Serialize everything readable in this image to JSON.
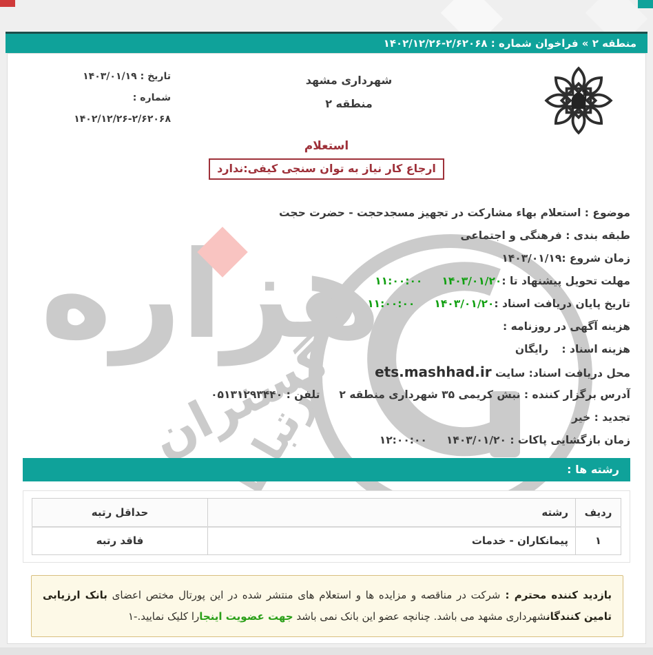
{
  "colors": {
    "teal": "#0fa29a",
    "teal_dark_edge": "#1d4d49",
    "maroon": "#9e3039",
    "green_value": "#12a012",
    "link_green": "#2ba019",
    "watermark_gray": "#cbcbcb",
    "watermark_pink": "#f9c4c1",
    "notice_bg": "#fdf9e7",
    "notice_border": "#d8bf7f",
    "corner_red": "#cf3a3a"
  },
  "header_bar": {
    "prefix": "منطقه ۲ » فراخوان شماره : ",
    "number": "۱۴۰۲/۱۲/۲۶-۲/۶۲۰۶۸"
  },
  "doc": {
    "org_title": "شهرداری مشهد",
    "org_subtitle": "منطقه ۲",
    "logo_icon": "mashhad-municipality-emblem",
    "meta": {
      "date_label": "تاریخ : ",
      "date_value": "۱۴۰۳/۰۱/۱۹",
      "number_label": "شماره :",
      "number_value": "۱۴۰۲/۱۲/۲۶-۲/۶۲۰۶۸"
    },
    "title": "استعلام",
    "qualification_box": "ارجاع کار نیاز به توان سنجی کیفی:ندارد",
    "fields": [
      {
        "segments": [
          {
            "t": "موضوع : ",
            "c": "lab"
          },
          {
            "t": "استعلام بهاء مشارکت در تجهیز مسجدحجت - حضرت حجت",
            "c": "val"
          }
        ]
      },
      {
        "segments": [
          {
            "t": "طبقه بندی : ",
            "c": "lab"
          },
          {
            "t": "فرهنگی و اجتماعی",
            "c": "val"
          }
        ]
      },
      {
        "segments": [
          {
            "t": "زمان شروع :",
            "c": "lab"
          },
          {
            "t": "۱۴۰۳/۰۱/۱۹",
            "c": "val num"
          }
        ]
      },
      {
        "segments": [
          {
            "t": "مهلت تحویل پیشنهاد تا :",
            "c": "lab"
          },
          {
            "t": "۱۴۰۳/۰۱/۲۰",
            "c": "val num green"
          },
          {
            "t": "۱۱:۰۰:۰۰",
            "c": "val num green sp"
          }
        ]
      },
      {
        "segments": [
          {
            "t": "تاریخ پایان دریافت اسناد :",
            "c": "lab"
          },
          {
            "t": "۱۴۰۳/۰۱/۲۰",
            "c": "val num green"
          },
          {
            "t": "۱۱:۰۰:۰۰",
            "c": "val num green sp"
          }
        ]
      },
      {
        "segments": [
          {
            "t": "هزینه آگهی در روزنامه :",
            "c": "lab"
          }
        ]
      },
      {
        "segments": [
          {
            "t": "هزینه اسناد : ",
            "c": "lab"
          },
          {
            "t": "رایگان",
            "c": "val sp2"
          }
        ]
      },
      {
        "segments": [
          {
            "t": "محل دریافت اسناد: سایت ",
            "c": "lab"
          },
          {
            "t": "ets.mashhad.ir",
            "c": "val url",
            "interactable": true
          }
        ]
      },
      {
        "segments": [
          {
            "t": "آدرس برگزار کننده :  ",
            "c": "lab"
          },
          {
            "t": "نبش کریمی ۳۵ شهرداری منطقه ۲",
            "c": "val"
          },
          {
            "t": "تلفن : ",
            "c": "lab sp"
          },
          {
            "t": "۰۵۱۳۱۲۹۳۴۴۰",
            "c": "val num"
          }
        ]
      },
      {
        "segments": [
          {
            "t": "تجدید : ",
            "c": "lab"
          },
          {
            "t": "خیر",
            "c": "val"
          }
        ]
      },
      {
        "segments": [
          {
            "t": "زمان بازگشایی پاکات :  ",
            "c": "lab"
          },
          {
            "t": "۱۴۰۳/۰۱/۲۰",
            "c": "val num"
          },
          {
            "t": "۱۲:۰۰:۰۰",
            "c": "val num sp"
          }
        ]
      }
    ],
    "section_bar": "رشته ها :",
    "table": {
      "headers": [
        "ردیف",
        "رشته",
        "حداقل رتبه"
      ],
      "rows": [
        [
          "۱",
          "پیمانکاران - خدمات",
          "فاقد رتبه"
        ]
      ]
    },
    "notice_segments": [
      {
        "t": "بازدید کننده محترم : ",
        "c": "b"
      },
      {
        "t": "شرکت در مناقصه و مزایده ها و استعلام های منتشر شده در این پورتال مختص اعضای ",
        "c": "n"
      },
      {
        "t": "بانک ارزیابی تامین کنندگان",
        "c": "b"
      },
      {
        "t": "شهرداری مشهد می باشد. چنانچه عضو این بانک نمی باشد ",
        "c": "n"
      },
      {
        "t": "جهت عضویت اینجا",
        "c": "link",
        "interactable": true
      },
      {
        "t": "را کلیک نمایید.-۱",
        "c": "n"
      }
    ]
  },
  "watermark": {
    "word1": "هزاره",
    "word2": "گستران",
    "word3": "ارتباط"
  }
}
